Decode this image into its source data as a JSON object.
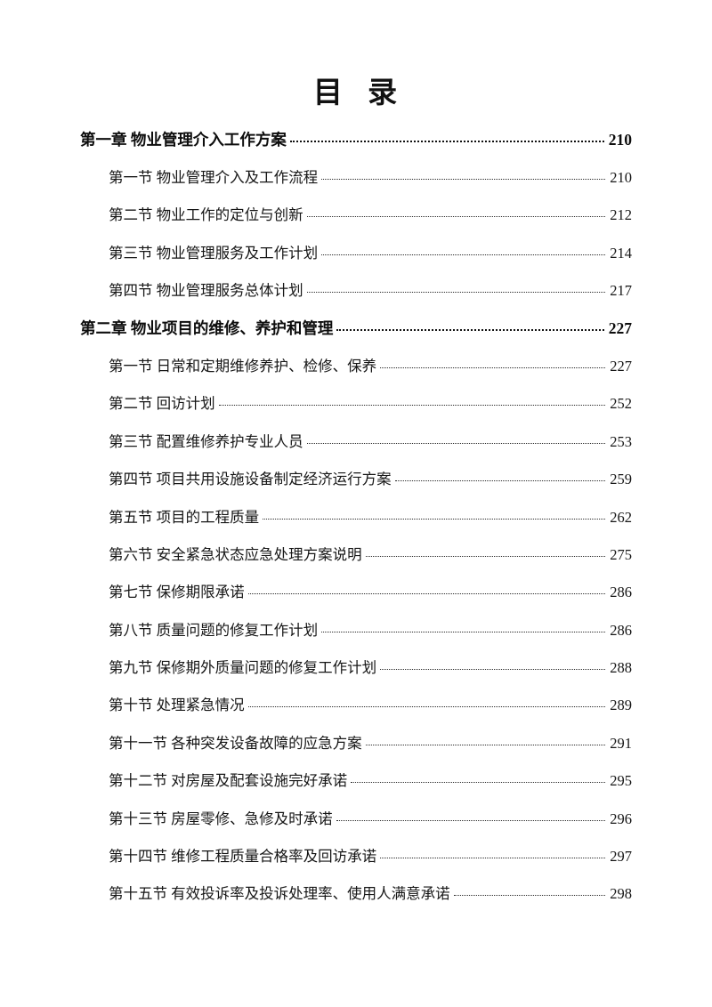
{
  "document": {
    "title": "目 录"
  },
  "toc": {
    "entries": [
      {
        "level": "chapter",
        "label": "第一章 物业管理介入工作方案",
        "page": "210"
      },
      {
        "level": "section",
        "label": "第一节 物业管理介入及工作流程",
        "page": "210"
      },
      {
        "level": "section",
        "label": "第二节 物业工作的定位与创新",
        "page": "212"
      },
      {
        "level": "section",
        "label": "第三节 物业管理服务及工作计划",
        "page": "214"
      },
      {
        "level": "section",
        "label": "第四节 物业管理服务总体计划",
        "page": "217"
      },
      {
        "level": "chapter",
        "label": "第二章 物业项目的维修、养护和管理",
        "page": "227"
      },
      {
        "level": "section",
        "label": "第一节 日常和定期维修养护、检修、保养",
        "page": "227"
      },
      {
        "level": "section",
        "label": "第二节 回访计划",
        "page": "252"
      },
      {
        "level": "section",
        "label": "第三节 配置维修养护专业人员",
        "page": "253"
      },
      {
        "level": "section",
        "label": "第四节 项目共用设施设备制定经济运行方案",
        "page": "259"
      },
      {
        "level": "section",
        "label": "第五节 项目的工程质量",
        "page": "262"
      },
      {
        "level": "section",
        "label": "第六节 安全紧急状态应急处理方案说明",
        "page": "275"
      },
      {
        "level": "section",
        "label": "第七节 保修期限承诺",
        "page": "286"
      },
      {
        "level": "section",
        "label": "第八节 质量问题的修复工作计划",
        "page": "286"
      },
      {
        "level": "section",
        "label": "第九节 保修期外质量问题的修复工作计划",
        "page": "288"
      },
      {
        "level": "section",
        "label": "第十节 处理紧急情况",
        "page": "289"
      },
      {
        "level": "section",
        "label": "第十一节 各种突发设备故障的应急方案",
        "page": "291"
      },
      {
        "level": "section",
        "label": "第十二节 对房屋及配套设施完好承诺",
        "page": "295"
      },
      {
        "level": "section",
        "label": "第十三节 房屋零修、急修及时承诺",
        "page": "296"
      },
      {
        "level": "section",
        "label": "第十四节 维修工程质量合格率及回访承诺",
        "page": "297"
      },
      {
        "level": "section",
        "label": "第十五节 有效投诉率及投诉处理率、使用人满意承诺",
        "page": "298"
      }
    ]
  }
}
